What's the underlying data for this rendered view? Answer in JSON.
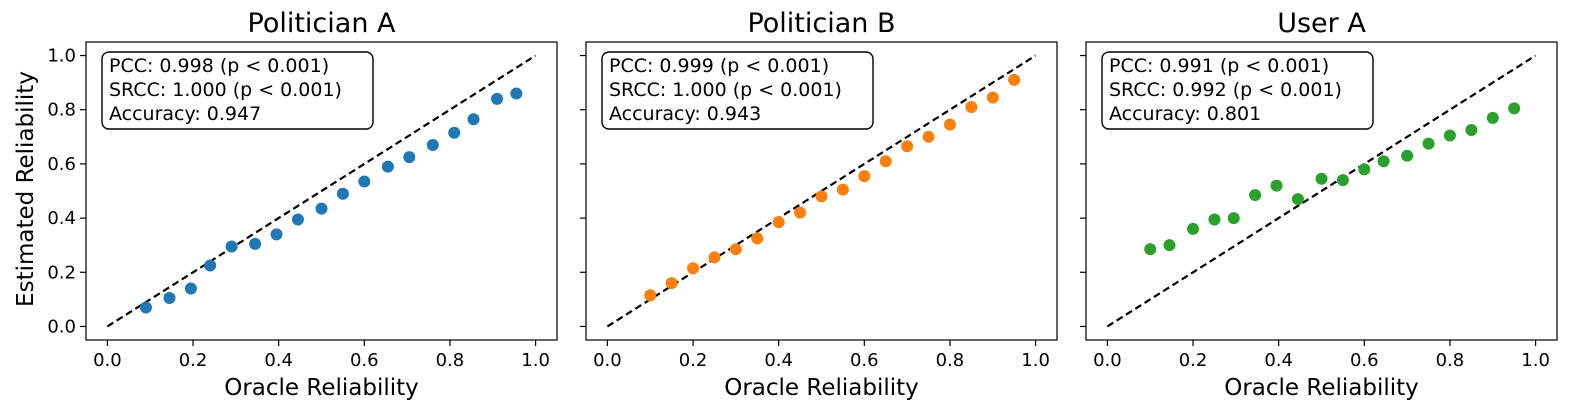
{
  "figure": {
    "ylabel": "Estimated Reliability"
  },
  "chart_data": [
    {
      "type": "scatter",
      "title": "Politician A",
      "xlabel": "Oracle Reliability",
      "ylabel": "Estimated Reliability",
      "xlim": [
        -0.05,
        1.05
      ],
      "ylim": [
        -0.05,
        1.05
      ],
      "xticks": [
        "0.0",
        "0.2",
        "0.4",
        "0.6",
        "0.8",
        "1.0"
      ],
      "yticks": [
        "0.0",
        "0.2",
        "0.4",
        "0.6",
        "0.8",
        "1.0"
      ],
      "color": "#1f77b4",
      "x": [
        0.09,
        0.145,
        0.195,
        0.24,
        0.29,
        0.345,
        0.395,
        0.445,
        0.5,
        0.55,
        0.6,
        0.655,
        0.705,
        0.76,
        0.81,
        0.855,
        0.91,
        0.955
      ],
      "y": [
        0.07,
        0.105,
        0.14,
        0.225,
        0.295,
        0.305,
        0.34,
        0.395,
        0.435,
        0.49,
        0.535,
        0.59,
        0.625,
        0.67,
        0.715,
        0.765,
        0.84,
        0.86
      ],
      "diagonal": true,
      "annotation": {
        "pcc": "PCC: 0.998",
        "pcc_p": "(p < 0.001)",
        "srcc": "SRCC: 1.000",
        "srcc_p": "(p < 0.001)",
        "accuracy": "Accuracy: 0.947"
      }
    },
    {
      "type": "scatter",
      "title": "Politician B",
      "xlabel": "Oracle Reliability",
      "ylabel": "",
      "xlim": [
        -0.05,
        1.05
      ],
      "ylim": [
        -0.05,
        1.05
      ],
      "xticks": [
        "0.0",
        "0.2",
        "0.4",
        "0.6",
        "0.8",
        "1.0"
      ],
      "yticks": [],
      "color": "#ff7f0e",
      "x": [
        0.1,
        0.15,
        0.2,
        0.25,
        0.3,
        0.35,
        0.4,
        0.45,
        0.5,
        0.55,
        0.6,
        0.65,
        0.7,
        0.75,
        0.8,
        0.85,
        0.9,
        0.95
      ],
      "y": [
        0.115,
        0.16,
        0.215,
        0.255,
        0.285,
        0.325,
        0.385,
        0.42,
        0.48,
        0.505,
        0.555,
        0.61,
        0.665,
        0.7,
        0.745,
        0.81,
        0.845,
        0.91
      ],
      "diagonal": true,
      "annotation": {
        "pcc": "PCC: 0.999",
        "pcc_p": "(p < 0.001)",
        "srcc": "SRCC: 1.000",
        "srcc_p": "(p < 0.001)",
        "accuracy": "Accuracy: 0.943"
      }
    },
    {
      "type": "scatter",
      "title": "User A",
      "xlabel": "Oracle Reliability",
      "ylabel": "",
      "xlim": [
        -0.05,
        1.05
      ],
      "ylim": [
        -0.05,
        1.05
      ],
      "xticks": [
        "0.0",
        "0.2",
        "0.4",
        "0.6",
        "0.8",
        "1.0"
      ],
      "yticks": [],
      "color": "#2ca02c",
      "x": [
        0.1,
        0.145,
        0.2,
        0.25,
        0.295,
        0.345,
        0.395,
        0.445,
        0.5,
        0.55,
        0.6,
        0.645,
        0.7,
        0.75,
        0.8,
        0.85,
        0.9,
        0.95
      ],
      "y": [
        0.285,
        0.3,
        0.36,
        0.395,
        0.4,
        0.485,
        0.52,
        0.47,
        0.545,
        0.54,
        0.58,
        0.61,
        0.63,
        0.675,
        0.705,
        0.725,
        0.77,
        0.805
      ],
      "diagonal": true,
      "annotation": {
        "pcc": "PCC: 0.991",
        "pcc_p": "(p < 0.001)",
        "srcc": "SRCC: 0.992",
        "srcc_p": "(p < 0.001)",
        "accuracy": "Accuracy: 0.801"
      }
    }
  ]
}
